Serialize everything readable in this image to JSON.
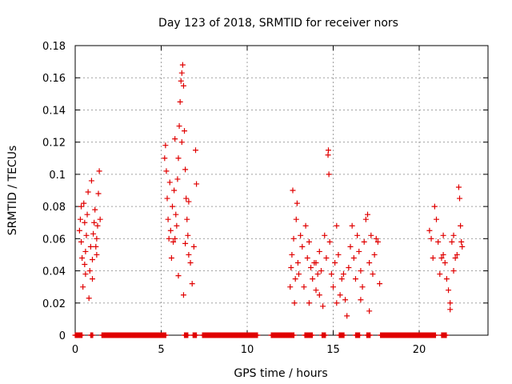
{
  "chart_data": {
    "type": "scatter",
    "title": "Day 123 of 2018, SRMTID for receiver nors",
    "xlabel": "GPS time / hours",
    "ylabel": "SRMTID / TECUs",
    "xlim": [
      0,
      24
    ],
    "ylim": [
      0,
      0.18
    ],
    "xticks": [
      0,
      5,
      10,
      15,
      20
    ],
    "xtick_labels": [
      "0",
      "5",
      "10",
      "15",
      "20"
    ],
    "yticks": [
      0,
      0.02,
      0.04,
      0.06,
      0.08,
      0.1,
      0.12,
      0.14,
      0.16,
      0.18
    ],
    "ytick_labels": [
      "0",
      "0.02",
      "0.04",
      "0.06",
      "0.08",
      "0.1",
      "0.12",
      "0.14",
      "0.16",
      "0.18"
    ],
    "grid": true,
    "marker": "+",
    "marker_color": "#e00000",
    "series": [
      {
        "name": "SRMTID",
        "points": [
          [
            0.25,
            0.065
          ],
          [
            0.3,
            0.072
          ],
          [
            0.35,
            0.058
          ],
          [
            0.4,
            0.048
          ],
          [
            0.45,
            0.03
          ],
          [
            0.5,
            0.082
          ],
          [
            0.55,
            0.044
          ],
          [
            0.6,
            0.038
          ],
          [
            0.65,
            0.062
          ],
          [
            0.7,
            0.075
          ],
          [
            0.75,
            0.089
          ],
          [
            0.8,
            0.023
          ],
          [
            0.85,
            0.04
          ],
          [
            0.9,
            0.055
          ],
          [
            0.95,
            0.096
          ],
          [
            1.0,
            0.047
          ],
          [
            1.05,
            0.063
          ],
          [
            1.1,
            0.07
          ],
          [
            1.15,
            0.078
          ],
          [
            1.2,
            0.055
          ],
          [
            1.25,
            0.06
          ],
          [
            1.3,
            0.068
          ],
          [
            1.35,
            0.088
          ],
          [
            1.4,
            0.102
          ],
          [
            1.45,
            0.072
          ],
          [
            0.35,
            0.08
          ],
          [
            0.55,
            0.07
          ],
          [
            1.0,
            0.035
          ],
          [
            1.25,
            0.05
          ],
          [
            0.6,
            0.052
          ],
          [
            5.2,
            0.11
          ],
          [
            5.25,
            0.118
          ],
          [
            5.3,
            0.102
          ],
          [
            5.35,
            0.085
          ],
          [
            5.4,
            0.072
          ],
          [
            5.45,
            0.06
          ],
          [
            5.5,
            0.095
          ],
          [
            5.55,
            0.065
          ],
          [
            5.6,
            0.048
          ],
          [
            5.65,
            0.08
          ],
          [
            5.7,
            0.058
          ],
          [
            5.75,
            0.09
          ],
          [
            5.8,
            0.122
          ],
          [
            5.85,
            0.075
          ],
          [
            5.9,
            0.068
          ],
          [
            5.95,
            0.097
          ],
          [
            6.0,
            0.11
          ],
          [
            6.05,
            0.13
          ],
          [
            6.1,
            0.145
          ],
          [
            6.15,
            0.158
          ],
          [
            6.2,
            0.163
          ],
          [
            6.25,
            0.168
          ],
          [
            6.3,
            0.155
          ],
          [
            6.35,
            0.127
          ],
          [
            6.4,
            0.103
          ],
          [
            6.45,
            0.085
          ],
          [
            6.5,
            0.072
          ],
          [
            6.55,
            0.062
          ],
          [
            6.6,
            0.05
          ],
          [
            6.7,
            0.045
          ],
          [
            6.8,
            0.032
          ],
          [
            6.9,
            0.055
          ],
          [
            7.0,
            0.115
          ],
          [
            7.05,
            0.094
          ],
          [
            6.0,
            0.037
          ],
          [
            6.2,
            0.12
          ],
          [
            6.4,
            0.057
          ],
          [
            5.8,
            0.06
          ],
          [
            6.6,
            0.083
          ],
          [
            6.3,
            0.025
          ],
          [
            12.5,
            0.03
          ],
          [
            12.55,
            0.042
          ],
          [
            12.6,
            0.05
          ],
          [
            12.65,
            0.09
          ],
          [
            12.7,
            0.06
          ],
          [
            12.75,
            0.02
          ],
          [
            12.8,
            0.035
          ],
          [
            12.85,
            0.072
          ],
          [
            12.9,
            0.082
          ],
          [
            12.95,
            0.045
          ],
          [
            13.0,
            0.038
          ],
          [
            13.1,
            0.062
          ],
          [
            13.2,
            0.055
          ],
          [
            13.3,
            0.03
          ],
          [
            13.4,
            0.068
          ],
          [
            13.5,
            0.048
          ],
          [
            13.6,
            0.058
          ],
          [
            13.7,
            0.042
          ],
          [
            13.8,
            0.035
          ],
          [
            13.9,
            0.045
          ],
          [
            14.0,
            0.028
          ],
          [
            14.1,
            0.038
          ],
          [
            14.2,
            0.052
          ],
          [
            14.3,
            0.04
          ],
          [
            14.4,
            0.018
          ],
          [
            14.5,
            0.062
          ],
          [
            14.6,
            0.048
          ],
          [
            14.7,
            0.112
          ],
          [
            14.72,
            0.115
          ],
          [
            14.75,
            0.1
          ],
          [
            14.8,
            0.058
          ],
          [
            14.9,
            0.038
          ],
          [
            15.0,
            0.03
          ],
          [
            15.1,
            0.045
          ],
          [
            15.2,
            0.068
          ],
          [
            15.3,
            0.05
          ],
          [
            15.4,
            0.025
          ],
          [
            15.5,
            0.035
          ],
          [
            15.6,
            0.038
          ],
          [
            15.7,
            0.022
          ],
          [
            15.8,
            0.012
          ],
          [
            15.9,
            0.042
          ],
          [
            16.0,
            0.055
          ],
          [
            16.1,
            0.068
          ],
          [
            16.2,
            0.048
          ],
          [
            16.3,
            0.035
          ],
          [
            16.4,
            0.062
          ],
          [
            16.5,
            0.052
          ],
          [
            16.6,
            0.04
          ],
          [
            16.7,
            0.03
          ],
          [
            16.8,
            0.058
          ],
          [
            16.9,
            0.072
          ],
          [
            17.0,
            0.075
          ],
          [
            17.1,
            0.045
          ],
          [
            17.2,
            0.062
          ],
          [
            17.3,
            0.038
          ],
          [
            17.4,
            0.05
          ],
          [
            17.5,
            0.06
          ],
          [
            17.6,
            0.058
          ],
          [
            17.7,
            0.032
          ],
          [
            14.0,
            0.045
          ],
          [
            14.2,
            0.025
          ],
          [
            15.2,
            0.02
          ],
          [
            16.6,
            0.022
          ],
          [
            17.1,
            0.015
          ],
          [
            13.6,
            0.02
          ],
          [
            20.6,
            0.065
          ],
          [
            20.7,
            0.06
          ],
          [
            20.8,
            0.048
          ],
          [
            20.9,
            0.08
          ],
          [
            21.0,
            0.072
          ],
          [
            21.1,
            0.058
          ],
          [
            21.2,
            0.038
          ],
          [
            21.3,
            0.048
          ],
          [
            21.4,
            0.062
          ],
          [
            21.5,
            0.045
          ],
          [
            21.6,
            0.035
          ],
          [
            21.7,
            0.028
          ],
          [
            21.8,
            0.02
          ],
          [
            21.9,
            0.058
          ],
          [
            22.0,
            0.04
          ],
          [
            22.1,
            0.048
          ],
          [
            22.2,
            0.05
          ],
          [
            22.3,
            0.092
          ],
          [
            22.35,
            0.085
          ],
          [
            22.4,
            0.068
          ],
          [
            22.45,
            0.058
          ],
          [
            22.5,
            0.055
          ],
          [
            21.8,
            0.016
          ],
          [
            22.0,
            0.062
          ],
          [
            21.4,
            0.05
          ]
        ]
      },
      {
        "name": "zero baseline",
        "x_segments": [
          [
            0.0,
            0.4
          ],
          [
            0.9,
            1.05
          ],
          [
            1.55,
            5.3
          ],
          [
            6.35,
            6.55
          ],
          [
            6.85,
            7.05
          ],
          [
            7.4,
            10.6
          ],
          [
            11.4,
            12.75
          ],
          [
            13.35,
            13.8
          ],
          [
            14.35,
            14.55
          ],
          [
            15.35,
            15.65
          ],
          [
            16.3,
            16.55
          ],
          [
            16.95,
            17.15
          ],
          [
            17.75,
            20.95
          ],
          [
            21.3,
            21.6
          ]
        ],
        "y": 0
      }
    ]
  }
}
